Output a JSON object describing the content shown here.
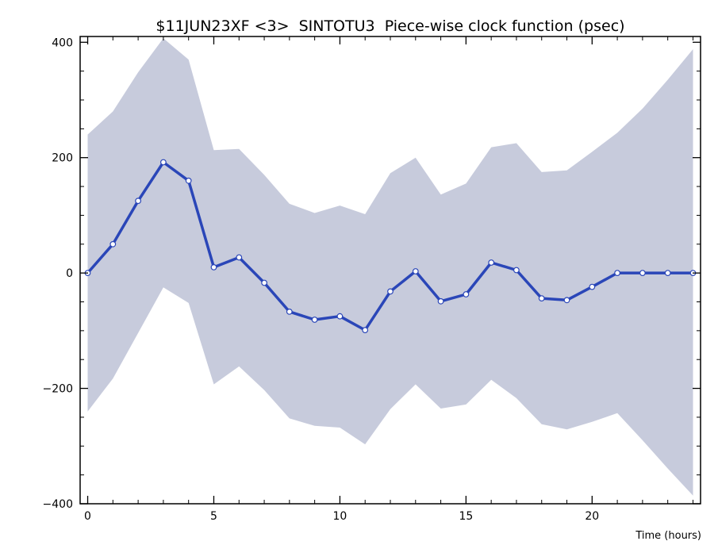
{
  "chart_data": {
    "type": "line",
    "title": "$11JUN23XF <3>  SINTOTU3  Piece-wise clock function (psec)",
    "xlabel": "Time (hours)",
    "ylabel": "",
    "xlim": [
      -0.3,
      24.3
    ],
    "ylim": [
      -400,
      410
    ],
    "x_ticks": [
      0,
      5,
      10,
      15,
      20
    ],
    "y_ticks": [
      -400,
      -200,
      0,
      200,
      400
    ],
    "grid": false,
    "colors": {
      "line": "#2a46b8",
      "band": "#c7cbdc",
      "marker_fill": "#ffffff"
    },
    "series": [
      {
        "x": [
          0,
          1,
          2,
          3,
          4,
          5,
          6,
          7,
          8,
          9,
          10,
          11,
          12,
          13,
          14,
          15,
          16,
          17,
          18,
          19,
          20,
          21,
          22,
          23,
          24
        ],
        "values": [
          0,
          50,
          125,
          192,
          160,
          10,
          27,
          -17,
          -67,
          -81,
          -75,
          -99,
          -32,
          3,
          -49,
          -37,
          18,
          5,
          -44,
          -47,
          -24,
          0,
          0,
          0,
          0
        ]
      }
    ],
    "band": {
      "x": [
        0,
        1,
        2,
        3,
        4,
        5,
        6,
        7,
        8,
        9,
        10,
        11,
        12,
        13,
        14,
        15,
        16,
        17,
        18,
        19,
        20,
        21,
        22,
        23,
        24
      ],
      "upper": [
        240,
        280,
        348,
        407,
        370,
        213,
        215,
        170,
        120,
        104,
        117,
        102,
        173,
        200,
        136,
        155,
        218,
        225,
        175,
        178,
        210,
        243,
        285,
        335,
        388
      ],
      "lower": [
        -240,
        -183,
        -104,
        -25,
        -52,
        -193,
        -162,
        -203,
        -252,
        -265,
        -268,
        -297,
        -236,
        -193,
        -235,
        -228,
        -185,
        -217,
        -262,
        -271,
        -258,
        -243,
        -290,
        -339,
        -386
      ]
    }
  }
}
